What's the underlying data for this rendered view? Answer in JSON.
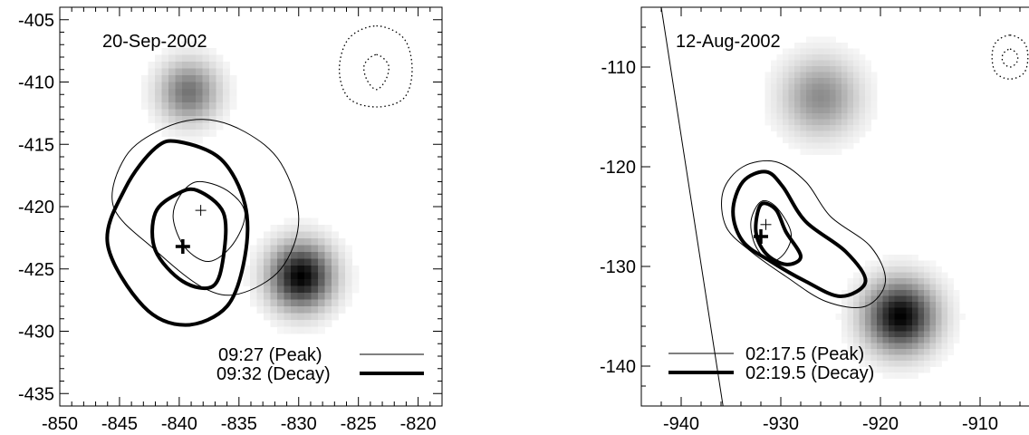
{
  "chart_data": [
    {
      "type": "contour",
      "date_label": "20-Sep-2002",
      "xlim": [
        -850,
        -818
      ],
      "ylim": [
        -436,
        -404
      ],
      "xticks": [
        -850,
        -845,
        -840,
        -835,
        -830,
        -825,
        -820
      ],
      "yticks": [
        -405,
        -410,
        -415,
        -420,
        -425,
        -430,
        -435
      ],
      "xlabel": "",
      "ylabel": "",
      "legend_position": "bottom-right",
      "series": [
        {
          "label": "09:27  (Peak)",
          "style": "thin",
          "contours": [
            [
              [
                -838,
                -413
              ],
              [
                -834.5,
                -414
              ],
              [
                -831.5,
                -416.5
              ],
              [
                -830,
                -421
              ],
              [
                -831.5,
                -425
              ],
              [
                -835,
                -427
              ],
              [
                -838,
                -426.5
              ],
              [
                -842,
                -423.5
              ],
              [
                -845.5,
                -420
              ],
              [
                -844.5,
                -416
              ],
              [
                -841.5,
                -413.8
              ]
            ],
            [
              [
                -838.5,
                -418
              ],
              [
                -836,
                -418.7
              ],
              [
                -834.5,
                -420.5
              ],
              [
                -835.5,
                -423
              ],
              [
                -837.5,
                -424.4
              ],
              [
                -839.5,
                -423.3
              ],
              [
                -840.5,
                -421
              ],
              [
                -840,
                -419.2
              ]
            ]
          ],
          "centroid": [
            -838.2,
            -420.3
          ]
        },
        {
          "label": "09:32 (Decay)",
          "style": "thick",
          "contours": [
            [
              [
                -840,
                -414.8
              ],
              [
                -836.5,
                -416.2
              ],
              [
                -834.5,
                -419.8
              ],
              [
                -834.5,
                -424
              ],
              [
                -836,
                -428
              ],
              [
                -839.5,
                -429.5
              ],
              [
                -843,
                -428
              ],
              [
                -846,
                -423
              ],
              [
                -844.5,
                -418.5
              ],
              [
                -842,
                -415.3
              ]
            ],
            [
              [
                -838.5,
                -418.7
              ],
              [
                -836.3,
                -420.5
              ],
              [
                -836.3,
                -424
              ],
              [
                -837.2,
                -426.4
              ],
              [
                -839.7,
                -426
              ],
              [
                -842,
                -423.5
              ],
              [
                -842,
                -420.5
              ],
              [
                -840.2,
                -419
              ]
            ]
          ],
          "centroid": [
            -839.7,
            -423.2
          ]
        }
      ],
      "sources": [
        {
          "x": -839.2,
          "y": -410.8,
          "peak": 0.55,
          "sigma": 1.7
        },
        {
          "x": -829.8,
          "y": -425.6,
          "peak": 1.0,
          "sigma": 1.8
        }
      ],
      "dotted_contours": [
        [
          [
            -823.5,
            -405.5
          ],
          [
            -821.2,
            -406.5
          ],
          [
            -820.5,
            -409
          ],
          [
            -821.2,
            -411.3
          ],
          [
            -823.5,
            -412
          ],
          [
            -825.8,
            -411.3
          ],
          [
            -826.6,
            -409
          ],
          [
            -825.8,
            -406.5
          ]
        ],
        [
          [
            -823.5,
            -407.8
          ],
          [
            -822.5,
            -408.6
          ],
          [
            -822.7,
            -409.8
          ],
          [
            -823.5,
            -410.6
          ],
          [
            -824.3,
            -409.8
          ],
          [
            -824.5,
            -408.6
          ]
        ]
      ]
    },
    {
      "type": "contour",
      "date_label": "12-Aug-2002",
      "xlim": [
        -944,
        -904
      ],
      "ylim": [
        -144,
        -104
      ],
      "xticks": [
        -940,
        -930,
        -920,
        -910
      ],
      "yticks": [
        -110,
        -120,
        -130,
        -140
      ],
      "xlabel": "",
      "ylabel": "",
      "legend_position": "bottom-left",
      "limb_line": [
        [
          -942,
          -104
        ],
        [
          -935.8,
          -144
        ]
      ],
      "series": [
        {
          "label": "02:17.5  (Peak)",
          "style": "thin",
          "contours": [
            [
              [
                -930.5,
                -119.5
              ],
              [
                -927.5,
                -121.5
              ],
              [
                -925,
                -125
              ],
              [
                -921,
                -128
              ],
              [
                -919.5,
                -131.5
              ],
              [
                -921.5,
                -134
              ],
              [
                -925.5,
                -133.5
              ],
              [
                -929.5,
                -131
              ],
              [
                -933,
                -128.5
              ],
              [
                -935.5,
                -126
              ],
              [
                -935.8,
                -122.5
              ],
              [
                -933.8,
                -120
              ]
            ],
            [
              [
                -932,
                -123.5
              ],
              [
                -930.5,
                -124
              ],
              [
                -929,
                -126.5
              ],
              [
                -929.5,
                -128.5
              ],
              [
                -931,
                -129.5
              ],
              [
                -932.5,
                -128
              ],
              [
                -933,
                -125.5
              ]
            ]
          ],
          "centroid": [
            -931.5,
            -125.8
          ]
        },
        {
          "label": "02:19.5 (Decay)",
          "style": "thick",
          "contours": [
            [
              [
                -931.5,
                -120.5
              ],
              [
                -929.8,
                -122
              ],
              [
                -927.5,
                -125.5
              ],
              [
                -923.5,
                -128.5
              ],
              [
                -921.5,
                -131.5
              ],
              [
                -924,
                -133
              ],
              [
                -927.5,
                -131.5
              ],
              [
                -931,
                -129.5
              ],
              [
                -933.8,
                -127.5
              ],
              [
                -934.8,
                -124.5
              ],
              [
                -933.8,
                -121.5
              ]
            ],
            [
              [
                -932,
                -123.8
              ],
              [
                -930.5,
                -124.3
              ],
              [
                -929.5,
                -126.5
              ],
              [
                -928,
                -129
              ],
              [
                -929.5,
                -129.8
              ],
              [
                -931.5,
                -128.7
              ],
              [
                -932.5,
                -126.5
              ]
            ]
          ],
          "centroid": [
            -932,
            -127
          ]
        }
      ],
      "sources": [
        {
          "x": -926,
          "y": -113,
          "peak": 0.45,
          "sigma": 2.6
        },
        {
          "x": -918,
          "y": -135,
          "peak": 1.0,
          "sigma": 2.4
        }
      ],
      "dotted_contours": [
        [
          [
            -907,
            -106.8
          ],
          [
            -905.6,
            -107.5
          ],
          [
            -905.2,
            -109
          ],
          [
            -905.6,
            -110.6
          ],
          [
            -907,
            -111.2
          ],
          [
            -908.4,
            -110.6
          ],
          [
            -908.8,
            -109
          ],
          [
            -908.4,
            -107.5
          ]
        ],
        [
          [
            -907,
            -108.2
          ],
          [
            -906.3,
            -108.7
          ],
          [
            -906.3,
            -109.5
          ],
          [
            -907,
            -110
          ],
          [
            -907.7,
            -109.5
          ],
          [
            -907.7,
            -108.7
          ]
        ]
      ]
    }
  ]
}
